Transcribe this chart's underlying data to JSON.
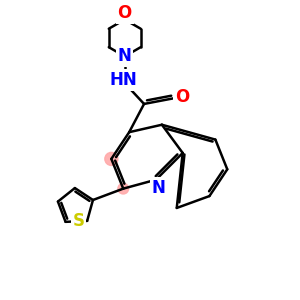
{
  "bg_color": "#ffffff",
  "bond_color": "#000000",
  "N_color": "#0000ff",
  "O_color": "#ff0000",
  "S_color": "#cccc00",
  "highlight_color": "#ffaaaa",
  "line_width": 1.8,
  "font_size": 11,
  "figsize": [
    3.0,
    3.0
  ],
  "dpi": 100,
  "xlim": [
    0,
    10
  ],
  "ylim": [
    0,
    10
  ]
}
